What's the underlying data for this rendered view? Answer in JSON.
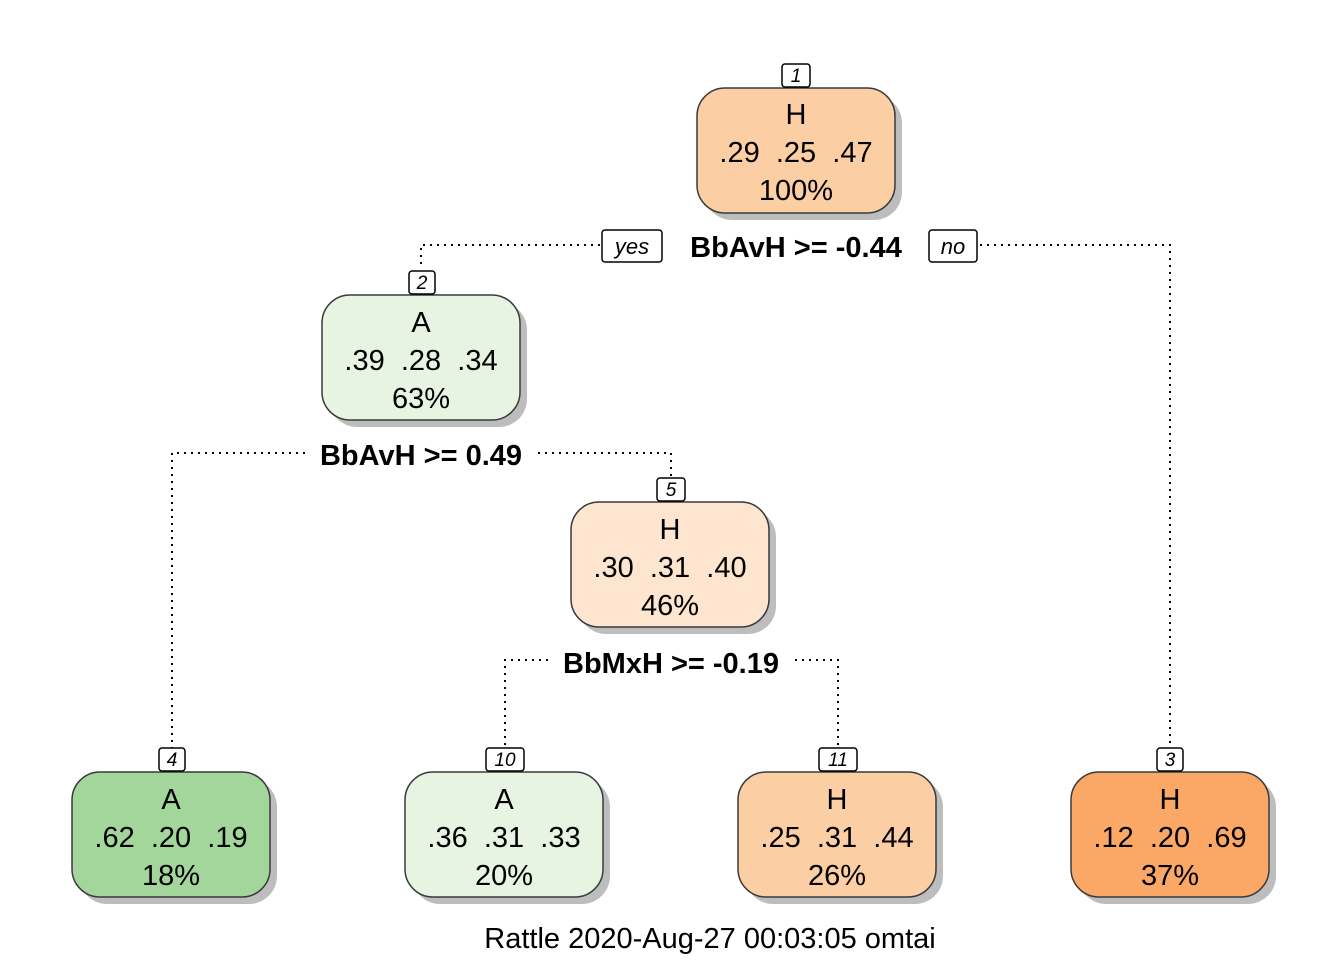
{
  "colors": {
    "A_strong": "#a3d69b",
    "A_light": "#e6f4e1",
    "H_strong": "#fba867",
    "H_medium": "#fbcfa3",
    "H_light": "#fde5cf",
    "node_border": "#3a3a3a",
    "shadow": "#bdbdbd"
  },
  "branch_labels": {
    "yes": "yes",
    "no": "no"
  },
  "nodes": [
    {
      "id": "1",
      "label": "H",
      "probs": ".29  .25  .47",
      "pct": "100%",
      "color": "#fbcfa3"
    },
    {
      "id": "2",
      "label": "A",
      "probs": ".39  .28  .34",
      "pct": "63%",
      "color": "#e6f4e1"
    },
    {
      "id": "5",
      "label": "H",
      "probs": ".30  .31  .40",
      "pct": "46%",
      "color": "#fde5cf"
    },
    {
      "id": "4",
      "label": "A",
      "probs": ".62  .20  .19",
      "pct": "18%",
      "color": "#a3d69b"
    },
    {
      "id": "10",
      "label": "A",
      "probs": ".36  .31  .33",
      "pct": "20%",
      "color": "#e6f4e1"
    },
    {
      "id": "11",
      "label": "H",
      "probs": ".25  .31  .44",
      "pct": "26%",
      "color": "#fbcfa3"
    },
    {
      "id": "3",
      "label": "H",
      "probs": ".12  .20  .69",
      "pct": "37%",
      "color": "#fba867"
    }
  ],
  "splits": [
    {
      "node": "1",
      "text": "BbAvH >= -0.44"
    },
    {
      "node": "2",
      "text": "BbAvH >= 0.49"
    },
    {
      "node": "5",
      "text": "BbMxH >= -0.19"
    }
  ],
  "footer": "Rattle 2020-Aug-27 00:03:05 omtai"
}
